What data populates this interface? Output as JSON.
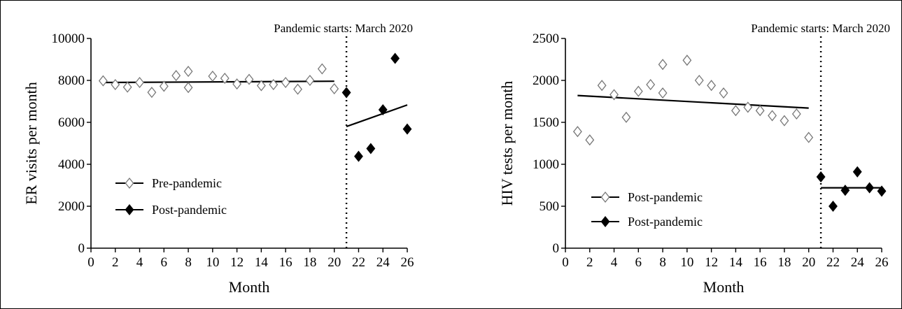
{
  "chart_data": [
    {
      "type": "scatter",
      "title": "",
      "annotation": "Pandemic starts: March 2020",
      "xlabel": "Month",
      "ylabel": "ER visits per month",
      "xlim": [
        0,
        26
      ],
      "ylim": [
        0,
        10000
      ],
      "xticks": [
        0,
        2,
        4,
        6,
        8,
        10,
        12,
        14,
        16,
        18,
        20,
        22,
        24,
        26
      ],
      "yticks": [
        0,
        2000,
        4000,
        6000,
        8000,
        10000
      ],
      "divider_x": 21,
      "legend_position": "lower-left",
      "series": [
        {
          "name": "Pre-pandemic",
          "marker": "open-diamond",
          "x": [
            1,
            2,
            3,
            4,
            5,
            6,
            7,
            8,
            8,
            10,
            11,
            12,
            13,
            14,
            15,
            16,
            17,
            18,
            19,
            20
          ],
          "y": [
            7980,
            7800,
            7680,
            7900,
            7430,
            7720,
            8230,
            8430,
            7660,
            8200,
            8100,
            7830,
            8050,
            7750,
            7800,
            7900,
            7580,
            8000,
            8550,
            7600
          ],
          "trend": [
            [
              1,
              7900
            ],
            [
              20,
              7960
            ]
          ]
        },
        {
          "name": "Post-pandemic",
          "marker": "filled-diamond",
          "x": [
            21,
            22,
            23,
            24,
            25,
            26
          ],
          "y": [
            7420,
            4380,
            4750,
            6600,
            9050,
            5680
          ],
          "trend": [
            [
              21,
              5800
            ],
            [
              26,
              6830
            ]
          ]
        }
      ]
    },
    {
      "type": "scatter",
      "title": "",
      "annotation": "Pandemic starts: March 2020",
      "xlabel": "Month",
      "ylabel": "HIV tests per month",
      "xlim": [
        0,
        26
      ],
      "ylim": [
        0,
        2500
      ],
      "xticks": [
        0,
        2,
        4,
        6,
        8,
        10,
        12,
        14,
        16,
        18,
        20,
        22,
        24,
        26
      ],
      "yticks": [
        0,
        500,
        1000,
        1500,
        2000,
        2500
      ],
      "divider_x": 21,
      "legend_position": "lower-left",
      "series": [
        {
          "name": "Post-pandemic",
          "marker": "open-diamond",
          "x": [
            1,
            2,
            3,
            4,
            5,
            6,
            7,
            8,
            8,
            10,
            11,
            12,
            13,
            14,
            15,
            16,
            17,
            18,
            19,
            20
          ],
          "y": [
            1390,
            1290,
            1940,
            1830,
            1560,
            1870,
            1950,
            2190,
            1850,
            2240,
            2000,
            1940,
            1850,
            1640,
            1680,
            1640,
            1580,
            1520,
            1600,
            1320
          ],
          "trend": [
            [
              1,
              1820
            ],
            [
              20,
              1670
            ]
          ]
        },
        {
          "name": "Post-pandemic",
          "marker": "filled-diamond",
          "x": [
            21,
            22,
            23,
            24,
            25,
            26
          ],
          "y": [
            850,
            500,
            690,
            910,
            720,
            680
          ],
          "trend": [
            [
              21,
              720
            ],
            [
              26,
              720
            ]
          ]
        }
      ]
    }
  ]
}
